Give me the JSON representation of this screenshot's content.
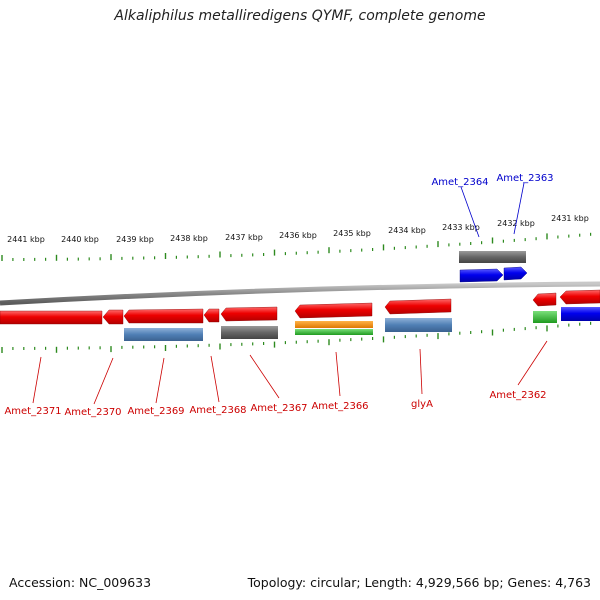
{
  "title": "Alkaliphilus metalliredigens QYMF, complete genome",
  "footer": {
    "accession": "Accession: NC_009633",
    "topology": "Topology: circular; Length: 4,929,566 bp; Genes: 4,763"
  },
  "colors": {
    "forward_label": "#0000cc",
    "reverse_label": "#cc0000",
    "backbone": "#888888",
    "tick": "#2d8a1e"
  },
  "scale_ticks": [
    "2441 kbp",
    "2440 kbp",
    "2439 kbp",
    "2438 kbp",
    "2437 kbp",
    "2436 kbp",
    "2435 kbp",
    "2434 kbp",
    "2433 kbp",
    "2432 kbp",
    "2431 kbp"
  ],
  "forward_gene_labels": [
    "Amet_2364",
    "Amet_2363"
  ],
  "reverse_gene_labels": [
    "Amet_2371",
    "Amet_2370",
    "Amet_2369",
    "Amet_2368",
    "Amet_2367",
    "Amet_2366",
    "glyA",
    "Amet_2362"
  ]
}
